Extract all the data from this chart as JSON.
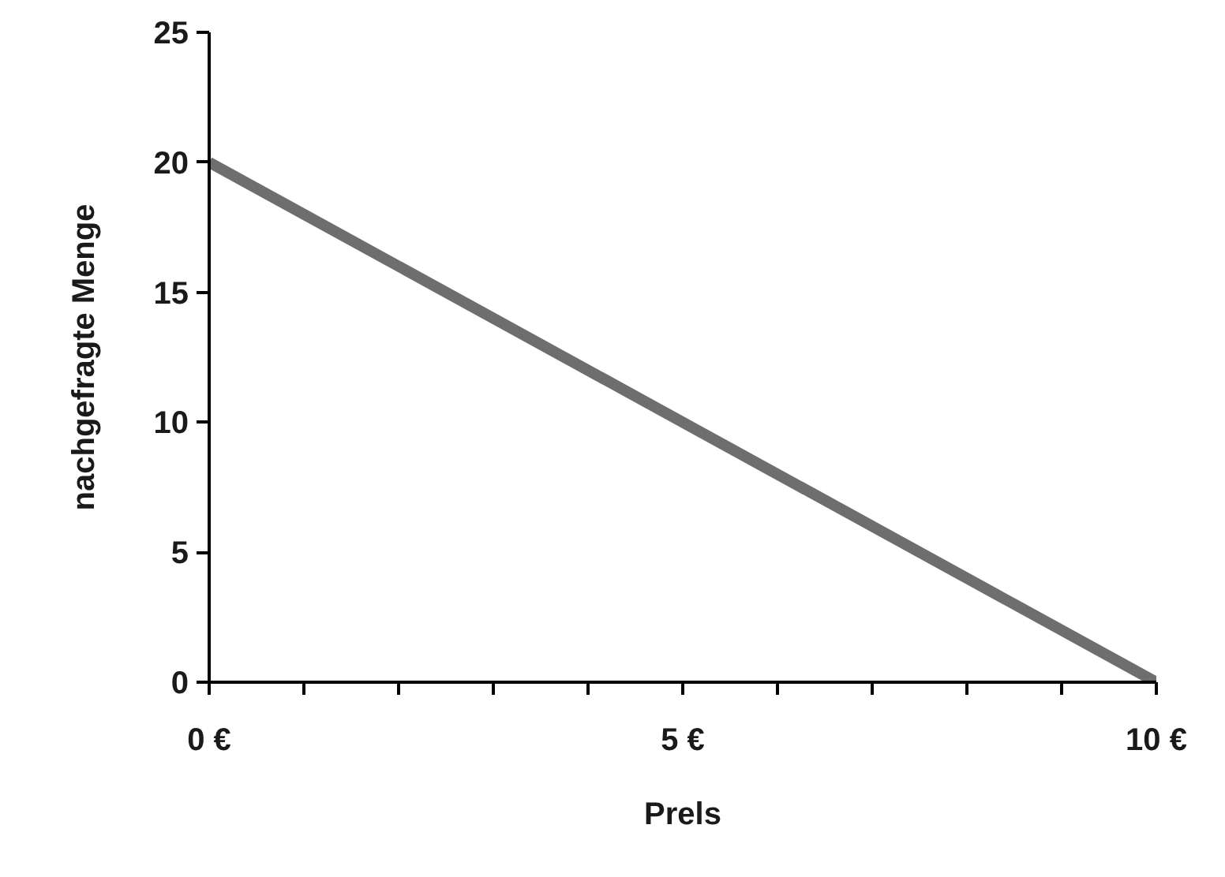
{
  "chart_data": {
    "type": "line",
    "xlabel": "Prels",
    "ylabel": "nachgefragte Menge",
    "x": [
      0,
      10
    ],
    "series": [
      {
        "color": "#6e6e6e",
        "values": [
          20,
          0
        ]
      }
    ],
    "xlim": [
      0,
      10
    ],
    "ylim": [
      0,
      25
    ],
    "xticks": [
      {
        "value": 0,
        "label": "0 €"
      },
      {
        "value": 1,
        "label": null
      },
      {
        "value": 2,
        "label": null
      },
      {
        "value": 3,
        "label": null
      },
      {
        "value": 4,
        "label": null
      },
      {
        "value": 5,
        "label": "5 €"
      },
      {
        "value": 6,
        "label": null
      },
      {
        "value": 7,
        "label": null
      },
      {
        "value": 8,
        "label": null
      },
      {
        "value": 9,
        "label": null
      },
      {
        "value": 10,
        "label": "10 €"
      }
    ],
    "yticks": [
      0,
      5,
      10,
      15,
      20,
      25
    ],
    "grid": false,
    "marker": "none",
    "line_style": "solid"
  }
}
